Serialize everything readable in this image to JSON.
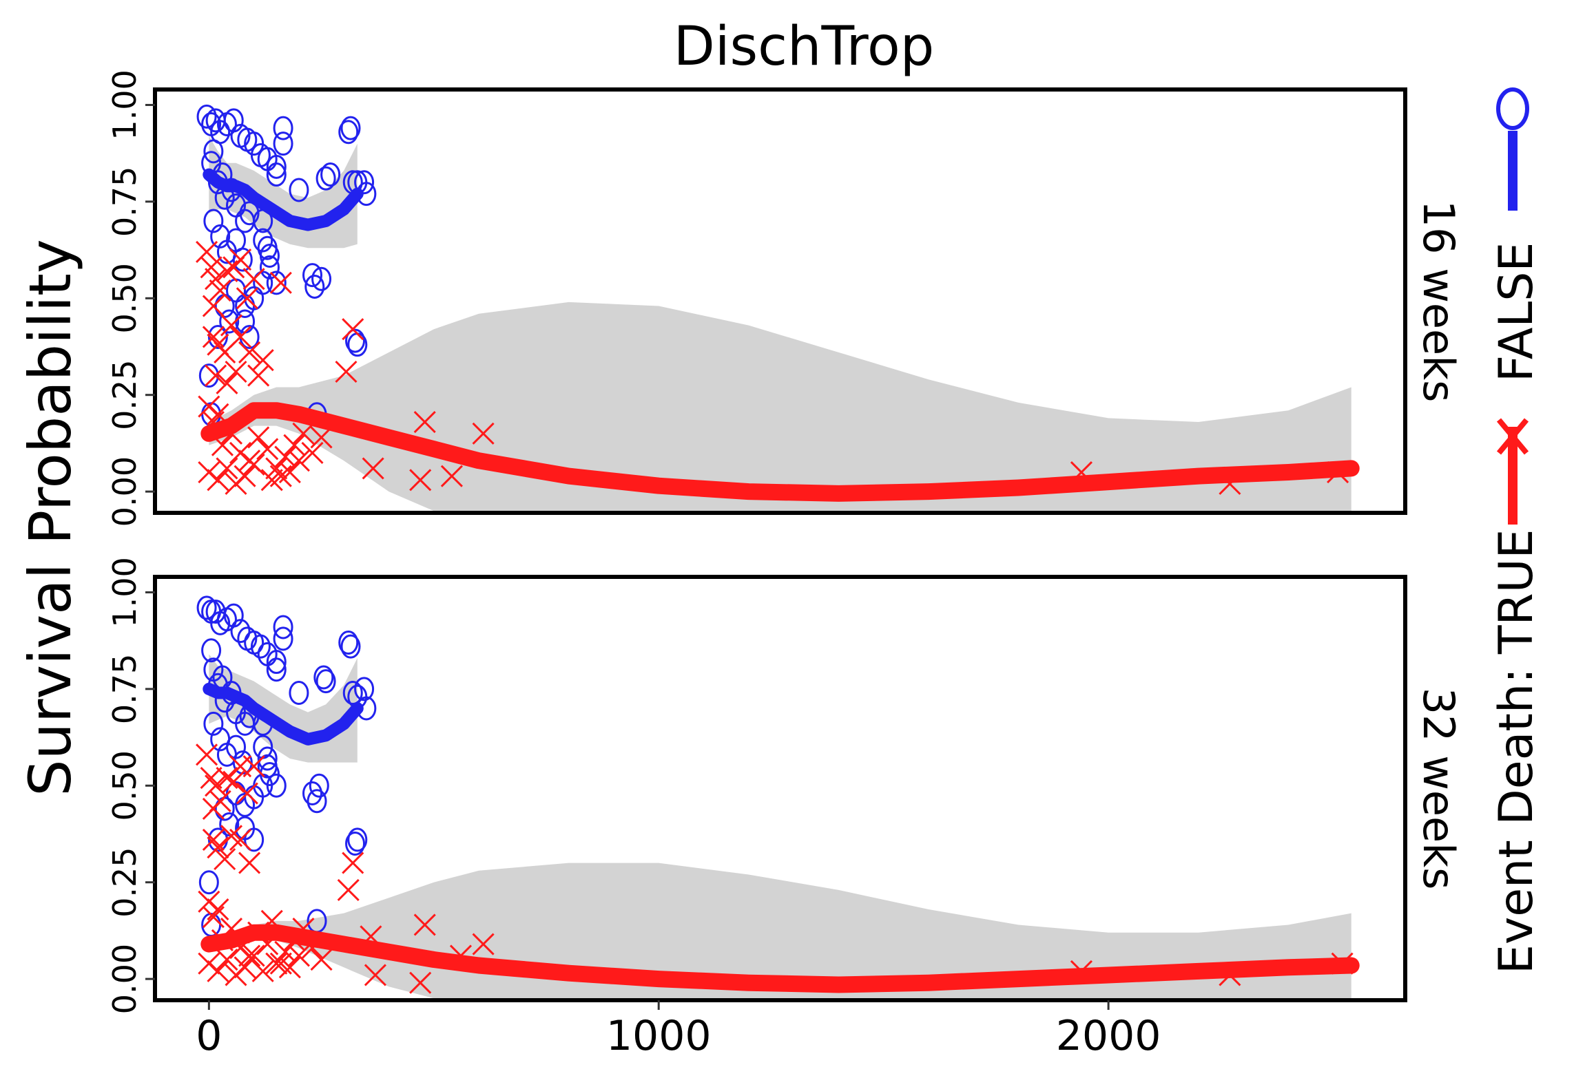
{
  "chart_data": {
    "type": "scatter",
    "title": "DischTrop",
    "ylabel": "Survival Probability",
    "xlabel": "",
    "xlim": [
      -120,
      2660
    ],
    "ylim": [
      -0.055,
      1.04
    ],
    "xticks": [
      0,
      1000,
      2000
    ],
    "xtick_labels": [
      "0",
      "1000",
      "2000"
    ],
    "yticks": [
      0,
      0.25,
      0.5,
      0.75,
      1.0
    ],
    "ytick_labels": [
      "0.00",
      "0.25",
      "0.50",
      "0.75",
      "1.00"
    ],
    "grid": false,
    "legend": {
      "title": "Event Death:",
      "placement": "right",
      "entries": [
        {
          "label": "TRUE",
          "marker": "x",
          "color": "#ff1a1a"
        },
        {
          "label": "FALSE",
          "marker": "circle",
          "color": "#2222ee"
        }
      ]
    },
    "colors": {
      "TRUE": "#ff1a1a",
      "FALSE": "#2222ee",
      "band": "#d3d3d3"
    },
    "panels": [
      {
        "label": "16 weeks",
        "smooth_false": {
          "x": [
            0,
            20,
            40,
            60,
            80,
            100,
            140,
            180,
            220,
            260,
            300,
            330
          ],
          "y": [
            0.82,
            0.8,
            0.79,
            0.79,
            0.78,
            0.76,
            0.73,
            0.7,
            0.69,
            0.7,
            0.73,
            0.77
          ],
          "band_lo": [
            0.72,
            0.73,
            0.73,
            0.72,
            0.71,
            0.69,
            0.66,
            0.64,
            0.63,
            0.63,
            0.63,
            0.64
          ],
          "band_hi": [
            0.92,
            0.88,
            0.85,
            0.85,
            0.84,
            0.83,
            0.8,
            0.77,
            0.76,
            0.78,
            0.83,
            0.9
          ]
        },
        "smooth_true": {
          "x": [
            0,
            50,
            100,
            150,
            200,
            300,
            400,
            500,
            600,
            800,
            1000,
            1200,
            1400,
            1600,
            1800,
            2000,
            2200,
            2400,
            2540
          ],
          "y": [
            0.15,
            0.17,
            0.21,
            0.21,
            0.2,
            0.17,
            0.14,
            0.11,
            0.08,
            0.04,
            0.015,
            0.0,
            -0.005,
            0.0,
            0.01,
            0.025,
            0.04,
            0.05,
            0.06
          ],
          "band_lo": [
            0.12,
            0.14,
            0.17,
            0.17,
            0.15,
            0.08,
            0.0,
            -0.05,
            -0.06,
            -0.06,
            -0.06,
            -0.06,
            -0.06,
            -0.06,
            -0.06,
            -0.06,
            -0.06,
            -0.06,
            -0.06
          ],
          "band_hi": [
            0.18,
            0.21,
            0.25,
            0.27,
            0.27,
            0.3,
            0.36,
            0.42,
            0.46,
            0.49,
            0.48,
            0.43,
            0.36,
            0.29,
            0.23,
            0.19,
            0.18,
            0.21,
            0.27
          ]
        },
        "points_false": [
          [
            -5,
            0.97
          ],
          [
            5,
            0.95
          ],
          [
            15,
            0.96
          ],
          [
            25,
            0.93
          ],
          [
            40,
            0.95
          ],
          [
            55,
            0.96
          ],
          [
            70,
            0.92
          ],
          [
            85,
            0.91
          ],
          [
            100,
            0.9
          ],
          [
            115,
            0.87
          ],
          [
            130,
            0.86
          ],
          [
            165,
            0.94
          ],
          [
            165,
            0.9
          ],
          [
            150,
            0.84
          ],
          [
            150,
            0.82
          ],
          [
            200,
            0.78
          ],
          [
            260,
            0.81
          ],
          [
            270,
            0.82
          ],
          [
            310,
            0.93
          ],
          [
            315,
            0.94
          ],
          [
            320,
            0.8
          ],
          [
            330,
            0.8
          ],
          [
            345,
            0.8
          ],
          [
            350,
            0.77
          ],
          [
            5,
            0.85
          ],
          [
            10,
            0.88
          ],
          [
            20,
            0.8
          ],
          [
            30,
            0.82
          ],
          [
            35,
            0.76
          ],
          [
            50,
            0.78
          ],
          [
            60,
            0.74
          ],
          [
            80,
            0.7
          ],
          [
            90,
            0.72
          ],
          [
            120,
            0.7
          ],
          [
            10,
            0.7
          ],
          [
            25,
            0.66
          ],
          [
            40,
            0.62
          ],
          [
            60,
            0.65
          ],
          [
            75,
            0.6
          ],
          [
            120,
            0.65
          ],
          [
            130,
            0.63
          ],
          [
            135,
            0.58
          ],
          [
            135,
            0.61
          ],
          [
            150,
            0.54
          ],
          [
            120,
            0.54
          ],
          [
            100,
            0.5
          ],
          [
            80,
            0.48
          ],
          [
            60,
            0.52
          ],
          [
            35,
            0.48
          ],
          [
            45,
            0.44
          ],
          [
            20,
            0.4
          ],
          [
            80,
            0.44
          ],
          [
            90,
            0.4
          ],
          [
            230,
            0.56
          ],
          [
            235,
            0.53
          ],
          [
            250,
            0.55
          ],
          [
            330,
            0.38
          ],
          [
            325,
            0.39
          ],
          [
            5,
            0.2
          ],
          [
            240,
            0.2
          ],
          [
            0,
            0.3
          ]
        ],
        "points_true": [
          [
            -5,
            0.62
          ],
          [
            5,
            0.58
          ],
          [
            15,
            0.55
          ],
          [
            10,
            0.48
          ],
          [
            25,
            0.52
          ],
          [
            40,
            0.57
          ],
          [
            55,
            0.58
          ],
          [
            70,
            0.6
          ],
          [
            100,
            0.55
          ],
          [
            85,
            0.5
          ],
          [
            160,
            0.54
          ],
          [
            10,
            0.4
          ],
          [
            20,
            0.38
          ],
          [
            35,
            0.36
          ],
          [
            50,
            0.43
          ],
          [
            70,
            0.4
          ],
          [
            90,
            0.36
          ],
          [
            120,
            0.34
          ],
          [
            110,
            0.3
          ],
          [
            15,
            0.3
          ],
          [
            40,
            0.28
          ],
          [
            60,
            0.31
          ],
          [
            0,
            0.22
          ],
          [
            10,
            0.18
          ],
          [
            20,
            0.2
          ],
          [
            30,
            0.12
          ],
          [
            50,
            0.15
          ],
          [
            70,
            0.1
          ],
          [
            90,
            0.08
          ],
          [
            110,
            0.14
          ],
          [
            130,
            0.11
          ],
          [
            150,
            0.06
          ],
          [
            170,
            0.09
          ],
          [
            190,
            0.12
          ],
          [
            210,
            0.15
          ],
          [
            230,
            0.1
          ],
          [
            250,
            0.14
          ],
          [
            0,
            0.05
          ],
          [
            20,
            0.03
          ],
          [
            40,
            0.06
          ],
          [
            60,
            0.02
          ],
          [
            80,
            0.04
          ],
          [
            100,
            0.07
          ],
          [
            140,
            0.03
          ],
          [
            160,
            0.04
          ],
          [
            180,
            0.05
          ],
          [
            200,
            0.08
          ],
          [
            320,
            0.42
          ],
          [
            305,
            0.31
          ],
          [
            365,
            0.06
          ],
          [
            480,
            0.18
          ],
          [
            470,
            0.03
          ],
          [
            540,
            0.04
          ],
          [
            610,
            0.15
          ],
          [
            1940,
            0.05
          ],
          [
            2270,
            0.02
          ],
          [
            2510,
            0.05
          ]
        ]
      },
      {
        "label": "32 weeks",
        "smooth_false": {
          "x": [
            0,
            20,
            40,
            60,
            80,
            100,
            140,
            180,
            220,
            260,
            300,
            330
          ],
          "y": [
            0.75,
            0.74,
            0.74,
            0.73,
            0.72,
            0.7,
            0.67,
            0.64,
            0.62,
            0.63,
            0.66,
            0.7
          ],
          "band_lo": [
            0.66,
            0.67,
            0.68,
            0.67,
            0.66,
            0.64,
            0.6,
            0.57,
            0.56,
            0.56,
            0.56,
            0.56
          ],
          "band_hi": [
            0.84,
            0.81,
            0.8,
            0.79,
            0.78,
            0.77,
            0.74,
            0.71,
            0.69,
            0.71,
            0.76,
            0.83
          ]
        },
        "smooth_true": {
          "x": [
            0,
            50,
            100,
            150,
            200,
            300,
            400,
            500,
            600,
            800,
            1000,
            1200,
            1400,
            1600,
            1800,
            2000,
            2200,
            2400,
            2540
          ],
          "y": [
            0.09,
            0.1,
            0.12,
            0.12,
            0.11,
            0.09,
            0.07,
            0.05,
            0.035,
            0.015,
            0.0,
            -0.01,
            -0.015,
            -0.01,
            0.0,
            0.01,
            0.02,
            0.03,
            0.035
          ],
          "band_lo": [
            0.07,
            0.08,
            0.1,
            0.1,
            0.08,
            0.03,
            -0.02,
            -0.05,
            -0.06,
            -0.06,
            -0.06,
            -0.06,
            -0.06,
            -0.06,
            -0.06,
            -0.06,
            -0.06,
            -0.06,
            -0.06
          ],
          "band_hi": [
            0.11,
            0.12,
            0.14,
            0.15,
            0.15,
            0.17,
            0.21,
            0.25,
            0.28,
            0.3,
            0.3,
            0.27,
            0.23,
            0.18,
            0.14,
            0.12,
            0.12,
            0.14,
            0.17
          ]
        },
        "points_false": [
          [
            -5,
            0.96
          ],
          [
            5,
            0.95
          ],
          [
            15,
            0.95
          ],
          [
            25,
            0.92
          ],
          [
            40,
            0.93
          ],
          [
            55,
            0.94
          ],
          [
            70,
            0.9
          ],
          [
            85,
            0.88
          ],
          [
            100,
            0.87
          ],
          [
            115,
            0.86
          ],
          [
            130,
            0.84
          ],
          [
            165,
            0.91
          ],
          [
            165,
            0.88
          ],
          [
            150,
            0.82
          ],
          [
            150,
            0.8
          ],
          [
            200,
            0.74
          ],
          [
            255,
            0.78
          ],
          [
            260,
            0.77
          ],
          [
            310,
            0.87
          ],
          [
            315,
            0.86
          ],
          [
            320,
            0.74
          ],
          [
            330,
            0.73
          ],
          [
            345,
            0.75
          ],
          [
            350,
            0.7
          ],
          [
            5,
            0.85
          ],
          [
            10,
            0.8
          ],
          [
            20,
            0.76
          ],
          [
            30,
            0.78
          ],
          [
            35,
            0.72
          ],
          [
            50,
            0.74
          ],
          [
            60,
            0.69
          ],
          [
            80,
            0.66
          ],
          [
            90,
            0.68
          ],
          [
            120,
            0.66
          ],
          [
            10,
            0.66
          ],
          [
            25,
            0.62
          ],
          [
            40,
            0.58
          ],
          [
            60,
            0.6
          ],
          [
            75,
            0.56
          ],
          [
            120,
            0.6
          ],
          [
            130,
            0.57
          ],
          [
            130,
            0.55
          ],
          [
            135,
            0.53
          ],
          [
            150,
            0.5
          ],
          [
            120,
            0.5
          ],
          [
            100,
            0.47
          ],
          [
            80,
            0.45
          ],
          [
            60,
            0.48
          ],
          [
            35,
            0.44
          ],
          [
            45,
            0.4
          ],
          [
            20,
            0.36
          ],
          [
            80,
            0.39
          ],
          [
            100,
            0.36
          ],
          [
            230,
            0.48
          ],
          [
            240,
            0.46
          ],
          [
            245,
            0.5
          ],
          [
            325,
            0.35
          ],
          [
            330,
            0.36
          ],
          [
            5,
            0.14
          ],
          [
            240,
            0.15
          ],
          [
            0,
            0.25
          ]
        ],
        "points_true": [
          [
            -5,
            0.58
          ],
          [
            5,
            0.52
          ],
          [
            15,
            0.5
          ],
          [
            10,
            0.44
          ],
          [
            25,
            0.46
          ],
          [
            40,
            0.52
          ],
          [
            55,
            0.51
          ],
          [
            70,
            0.55
          ],
          [
            85,
            0.48
          ],
          [
            100,
            0.55
          ],
          [
            10,
            0.36
          ],
          [
            20,
            0.34
          ],
          [
            35,
            0.31
          ],
          [
            50,
            0.37
          ],
          [
            70,
            0.36
          ],
          [
            90,
            0.3
          ],
          [
            0,
            0.2
          ],
          [
            10,
            0.16
          ],
          [
            20,
            0.18
          ],
          [
            30,
            0.1
          ],
          [
            50,
            0.13
          ],
          [
            70,
            0.08
          ],
          [
            90,
            0.06
          ],
          [
            110,
            0.12
          ],
          [
            130,
            0.09
          ],
          [
            150,
            0.04
          ],
          [
            170,
            0.07
          ],
          [
            190,
            0.1
          ],
          [
            210,
            0.13
          ],
          [
            230,
            0.08
          ],
          [
            250,
            0.05
          ],
          [
            0,
            0.04
          ],
          [
            20,
            0.02
          ],
          [
            40,
            0.05
          ],
          [
            60,
            0.01
          ],
          [
            80,
            0.03
          ],
          [
            100,
            0.06
          ],
          [
            120,
            0.02
          ],
          [
            140,
            0.15
          ],
          [
            160,
            0.04
          ],
          [
            180,
            0.03
          ],
          [
            200,
            0.06
          ],
          [
            320,
            0.3
          ],
          [
            310,
            0.23
          ],
          [
            360,
            0.11
          ],
          [
            370,
            0.01
          ],
          [
            480,
            0.14
          ],
          [
            470,
            -0.01
          ],
          [
            560,
            0.06
          ],
          [
            610,
            0.09
          ],
          [
            1940,
            0.02
          ],
          [
            2270,
            0.01
          ],
          [
            2520,
            0.04
          ]
        ]
      }
    ]
  }
}
